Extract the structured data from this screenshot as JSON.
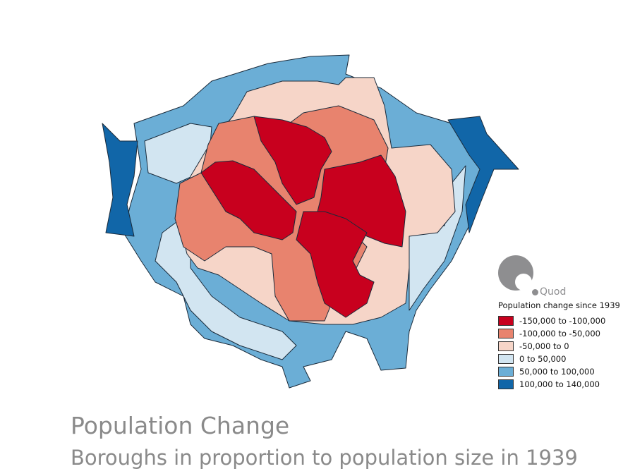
{
  "title": "Population Change",
  "subtitle": "Boroughs in proportion to population size in 1939",
  "logo": {
    "text": "Quod"
  },
  "legend": {
    "title": "Population change since 1939",
    "items": [
      {
        "label": "-150,000 to -100,000",
        "color": "#c8001e"
      },
      {
        "label": "-100,000 to -50,000",
        "color": "#e8836e"
      },
      {
        "label": "-50,000 to 0",
        "color": "#f6d5c8"
      },
      {
        "label": "0 to 50,000",
        "color": "#d2e5f1"
      },
      {
        "label": "50,000 to 100,000",
        "color": "#6baed6"
      },
      {
        "label": "100,000 to 140,000",
        "color": "#1166a8"
      }
    ]
  }
}
